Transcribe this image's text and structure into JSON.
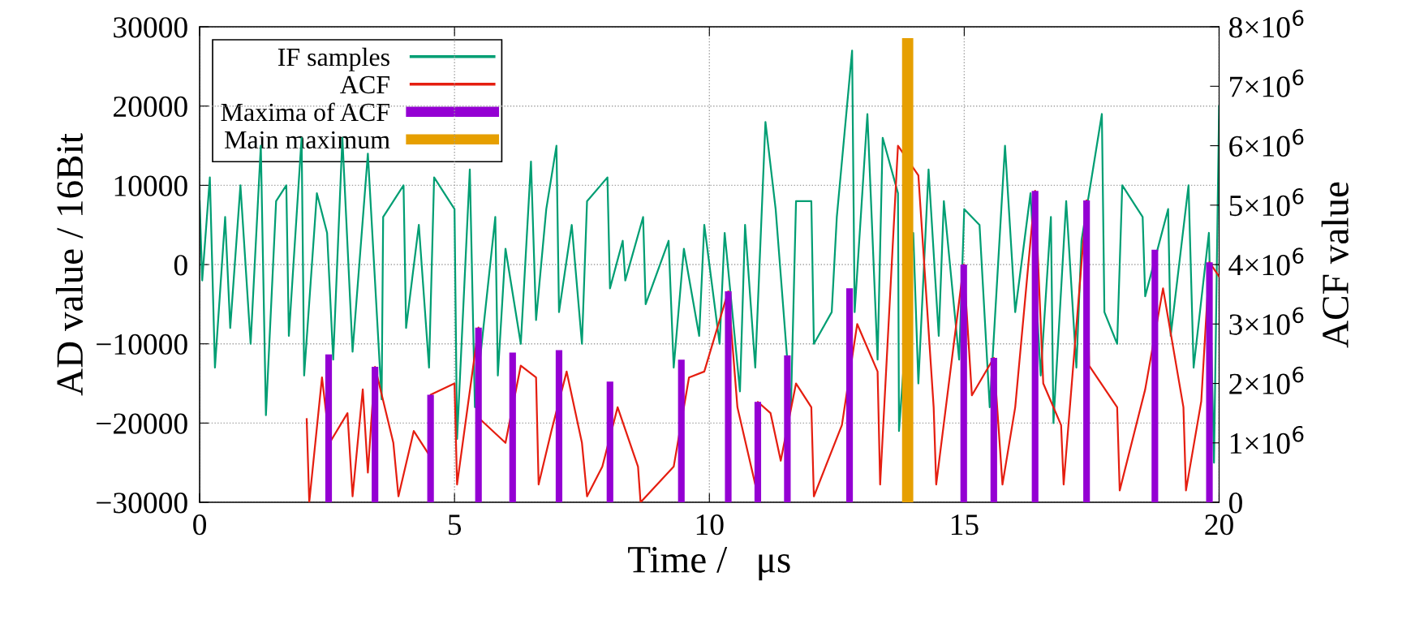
{
  "chart_data": {
    "type": "line",
    "xlabel": "Time /   μs",
    "ylabel": "AD value / 16Bit",
    "y2label": "ACF value",
    "xlim": [
      0,
      20
    ],
    "xticks": [
      0,
      5,
      10,
      15,
      20
    ],
    "ylim": [
      -30000,
      30000
    ],
    "yticks": [
      -30000,
      -20000,
      -10000,
      0,
      10000,
      20000,
      30000
    ],
    "y2lim": [
      0,
      8000000
    ],
    "y2ticks": [
      0,
      {
        "value": 1000000,
        "label": "1×10$^{6}$"
      },
      {
        "value": 2000000,
        "label": "2×10$^{6}$"
      },
      {
        "value": 3000000,
        "label": "3×10$^{6}$"
      },
      {
        "value": 4000000,
        "label": "4×10$^{6}$"
      },
      {
        "value": 5000000,
        "label": "5×10$^{6}$"
      },
      {
        "value": 6000000,
        "label": "6×10$^{6}$"
      },
      {
        "value": 7000000,
        "label": "7×10$^{6}$"
      },
      {
        "value": 8000000,
        "label": "8×10$^{6}$"
      }
    ],
    "grid": true,
    "legend": "top left",
    "line_style": "solid",
    "marker": "none",
    "series": [
      {
        "name": "IF samples",
        "color": "#009e73",
        "x": [
          0,
          0.05,
          0.2,
          0.3,
          0.5,
          0.6,
          0.8,
          1.0,
          1.2,
          1.3,
          1.5,
          1.7,
          1.75,
          2.0,
          2.05,
          2.3,
          2.5,
          2.62,
          2.8,
          3.0,
          3.3,
          3.57,
          3.6,
          4.0,
          4.05,
          4.3,
          4.5,
          4.6,
          5.0,
          5.05,
          5.3,
          5.4,
          5.8,
          5.85,
          6.0,
          6.3,
          6.5,
          6.6,
          6.8,
          7.0,
          7.05,
          7.3,
          7.5,
          7.6,
          8.0,
          8.05,
          8.3,
          8.35,
          8.7,
          8.75,
          9.2,
          9.3,
          9.5,
          9.8,
          9.9,
          10.2,
          10.3,
          10.6,
          10.7,
          10.9,
          11.1,
          11.3,
          11.6,
          11.7,
          12.0,
          12.05,
          12.4,
          12.5,
          12.8,
          12.85,
          13.1,
          13.3,
          13.4,
          13.7,
          13.72,
          14.0,
          14.1,
          14.3,
          14.5,
          14.6,
          14.9,
          15.0,
          15.3,
          15.5,
          15.8,
          16.0,
          16.2,
          16.3,
          16.5,
          16.7,
          16.75,
          17.0,
          17.2,
          17.3,
          17.7,
          17.75,
          18.0,
          18.1,
          18.5,
          18.55,
          19.0,
          19.05,
          19.4,
          19.5,
          19.8,
          19.9,
          20
        ],
        "values": [
          8000,
          -2000,
          11000,
          -13000,
          6000,
          -8000,
          10000,
          -10000,
          15000,
          -19000,
          8000,
          10000,
          -9000,
          16000,
          -14000,
          9000,
          4000,
          -12000,
          16000,
          -11000,
          14000,
          -17000,
          6000,
          10000,
          -8000,
          5000,
          -13000,
          11000,
          7000,
          -22000,
          12000,
          -18000,
          6000,
          -14000,
          2000,
          -10000,
          13000,
          -7000,
          7000,
          15000,
          -6000,
          5000,
          -10000,
          8000,
          11000,
          -3000,
          3000,
          -2000,
          6000,
          -5000,
          3000,
          -13000,
          2000,
          -9000,
          5000,
          -10000,
          4000,
          -16000,
          5000,
          -13000,
          18000,
          7000,
          -18000,
          8000,
          8000,
          -10000,
          -6000,
          6000,
          27000,
          -6000,
          19000,
          -12000,
          16000,
          9000,
          -21000,
          4000,
          -15000,
          12000,
          -9000,
          8000,
          -12000,
          7000,
          5000,
          -18000,
          15000,
          -6000,
          4000,
          9000,
          -14000,
          6000,
          -20000,
          8000,
          -13000,
          3000,
          19000,
          -6000,
          -10000,
          10000,
          6000,
          -4000,
          7000,
          -9000,
          10000,
          -13000,
          4000,
          -25000,
          20000
        ]
      },
      {
        "name": "ACF",
        "color": "#e51e10",
        "axis": "y2",
        "x": [
          2.1,
          2.15,
          2.4,
          2.55,
          2.9,
          3.0,
          3.2,
          3.3,
          3.44,
          3.8,
          3.9,
          4.2,
          4.5,
          4.53,
          5.0,
          5.05,
          5.47,
          5.5,
          6.0,
          6.3,
          6.6,
          6.65,
          6.9,
          7.2,
          7.5,
          7.6,
          7.9,
          8.2,
          8.6,
          8.65,
          9.3,
          9.6,
          9.9,
          10.37,
          10.55,
          10.9,
          10.95,
          11.2,
          11.4,
          11.7,
          12.0,
          12.05,
          12.6,
          12.9,
          13.3,
          13.35,
          13.7,
          14.1,
          14.4,
          14.45,
          14.99,
          15.15,
          15.58,
          15.75,
          16.0,
          16.39,
          16.55,
          16.9,
          16.95,
          17.4,
          17.45,
          18.0,
          18.05,
          18.55,
          18.9,
          19.3,
          19.35,
          19.65,
          19.81,
          20
        ],
        "values": [
          1400000,
          0,
          2100000,
          1000000,
          1500000,
          100000,
          1900000,
          500000,
          2280000,
          1000000,
          100000,
          1200000,
          800000,
          1810000,
          2000000,
          300000,
          2940000,
          1400000,
          1000000,
          2300000,
          2100000,
          300000,
          1200000,
          2200000,
          1000000,
          100000,
          600000,
          1600000,
          600000,
          0,
          600000,
          2100000,
          2200000,
          3550000,
          1600000,
          300000,
          1690000,
          1500000,
          700000,
          2000000,
          1600000,
          100000,
          1300000,
          3000000,
          2200000,
          300000,
          6000000,
          5500000,
          1600000,
          300000,
          4000000,
          1800000,
          2430000,
          300000,
          1600000,
          5240000,
          2000000,
          1300000,
          300000,
          5080000,
          2300000,
          1600000,
          200000,
          1900000,
          3600000,
          1600000,
          200000,
          1700000,
          4040000,
          3800000
        ]
      },
      {
        "name": "Maxima of ACF",
        "color": "#9400d3",
        "type": "bar",
        "axis": "y2",
        "x": [
          2.53,
          3.44,
          4.53,
          5.47,
          6.14,
          7.05,
          8.05,
          9.45,
          10.37,
          10.95,
          11.53,
          12.75,
          14.99,
          15.58,
          16.39,
          17.4,
          18.74,
          19.81
        ],
        "values": [
          2490000,
          2280000,
          1810000,
          2940000,
          2520000,
          2560000,
          2030000,
          2400000,
          3550000,
          1690000,
          2470000,
          3600000,
          4000000,
          2430000,
          5240000,
          5080000,
          4250000,
          4040000
        ]
      },
      {
        "name": "Main maximum",
        "color": "#e69f00",
        "type": "bar",
        "axis": "y2",
        "x": [
          13.89
        ],
        "values": [
          7810000
        ]
      }
    ]
  }
}
